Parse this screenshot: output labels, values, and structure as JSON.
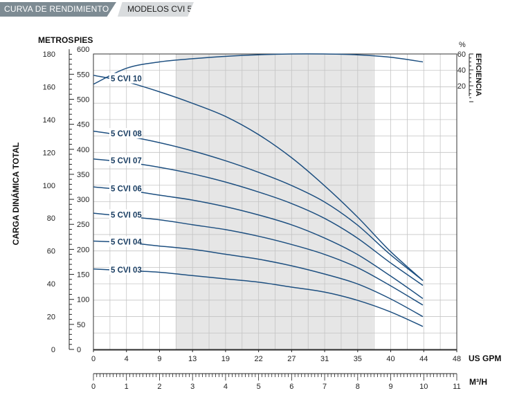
{
  "header": {
    "tab_active": "CURVA DE RENDIMIENTO",
    "tab_models": "MODELOS CVI 5"
  },
  "chart_data": {
    "type": "line",
    "title": "",
    "ylabel": "CARGA DINÁMICA TOTAL",
    "y_left_label": "METROS",
    "y_right_label": "PIES",
    "x_label_gpm": "US GPM",
    "x_label_m3h": "M³/H",
    "eff_pct_label": "%",
    "eff_label": "EFICIENCIA",
    "xlim_gpm": [
      0,
      48
    ],
    "x_ticks_gpm": [
      "0",
      "4",
      "9",
      "13",
      "19",
      "22",
      "27",
      "31",
      "35",
      "40",
      "44",
      "48"
    ],
    "x_ticks_m3h": [
      "0",
      "1",
      "2",
      "3",
      "4",
      "5",
      "6",
      "7",
      "8",
      "9",
      "10",
      "11"
    ],
    "y_ticks_metros": [
      "0",
      "20",
      "40",
      "60",
      "80",
      "100",
      "120",
      "140",
      "160",
      "180"
    ],
    "y_ticks_pies": [
      "0",
      "50",
      "100",
      "150",
      "200",
      "250",
      "300",
      "350",
      "400",
      "450",
      "500",
      "550",
      "600"
    ],
    "eff_ticks": [
      "20",
      "40",
      "60"
    ],
    "shaded_range_m3h": [
      2.5,
      8.5
    ],
    "series": [
      {
        "name": "5 CVI 10",
        "x_m3h": [
          0,
          1,
          2,
          3,
          4,
          5,
          6,
          7,
          8,
          9,
          10
        ],
        "y_m": [
          167,
          163,
          157,
          150,
          142,
          131,
          117,
          100,
          81,
          60,
          42
        ]
      },
      {
        "name": "5 CVI 08",
        "x_m3h": [
          0,
          1,
          2,
          3,
          4,
          5,
          6,
          7,
          8,
          9,
          10
        ],
        "y_m": [
          133,
          130,
          126,
          121,
          115,
          108,
          100,
          90,
          76,
          58,
          42
        ]
      },
      {
        "name": "5 CVI 07",
        "x_m3h": [
          0,
          1,
          2,
          3,
          4,
          5,
          6,
          7,
          8,
          9,
          10
        ],
        "y_m": [
          116,
          114,
          111,
          107,
          102,
          96,
          89,
          80,
          68,
          53,
          39
        ]
      },
      {
        "name": "5 CVI 06",
        "x_m3h": [
          0,
          1,
          2,
          3,
          4,
          5,
          6,
          7,
          8,
          9,
          10
        ],
        "y_m": [
          99,
          97,
          94,
          91,
          87,
          82,
          76,
          68,
          58,
          45,
          31
        ]
      },
      {
        "name": "5 CVI 05",
        "x_m3h": [
          0,
          1,
          2,
          3,
          4,
          5,
          6,
          7,
          8,
          9,
          10
        ],
        "y_m": [
          83,
          81,
          79,
          76,
          73,
          69,
          64,
          58,
          50,
          39,
          27
        ]
      },
      {
        "name": "5 CVI 04",
        "x_m3h": [
          0,
          1,
          2,
          3,
          4,
          5,
          6,
          7,
          8,
          9,
          10
        ],
        "y_m": [
          66,
          65,
          63,
          61,
          58,
          55,
          51,
          46,
          40,
          31,
          20
        ]
      },
      {
        "name": "5 CVI 03",
        "x_m3h": [
          0,
          1,
          2,
          3,
          4,
          5,
          6,
          7,
          8,
          9,
          10
        ],
        "y_m": [
          49,
          48,
          47,
          45,
          43,
          41,
          38,
          35,
          30,
          23,
          14
        ]
      }
    ],
    "efficiency": {
      "x_m3h": [
        0,
        1,
        2,
        3,
        4,
        5,
        6,
        7,
        8,
        9,
        10
      ],
      "eff_pct": [
        22,
        42,
        50,
        54,
        57,
        59,
        60,
        60,
        59,
        56,
        50
      ]
    }
  }
}
